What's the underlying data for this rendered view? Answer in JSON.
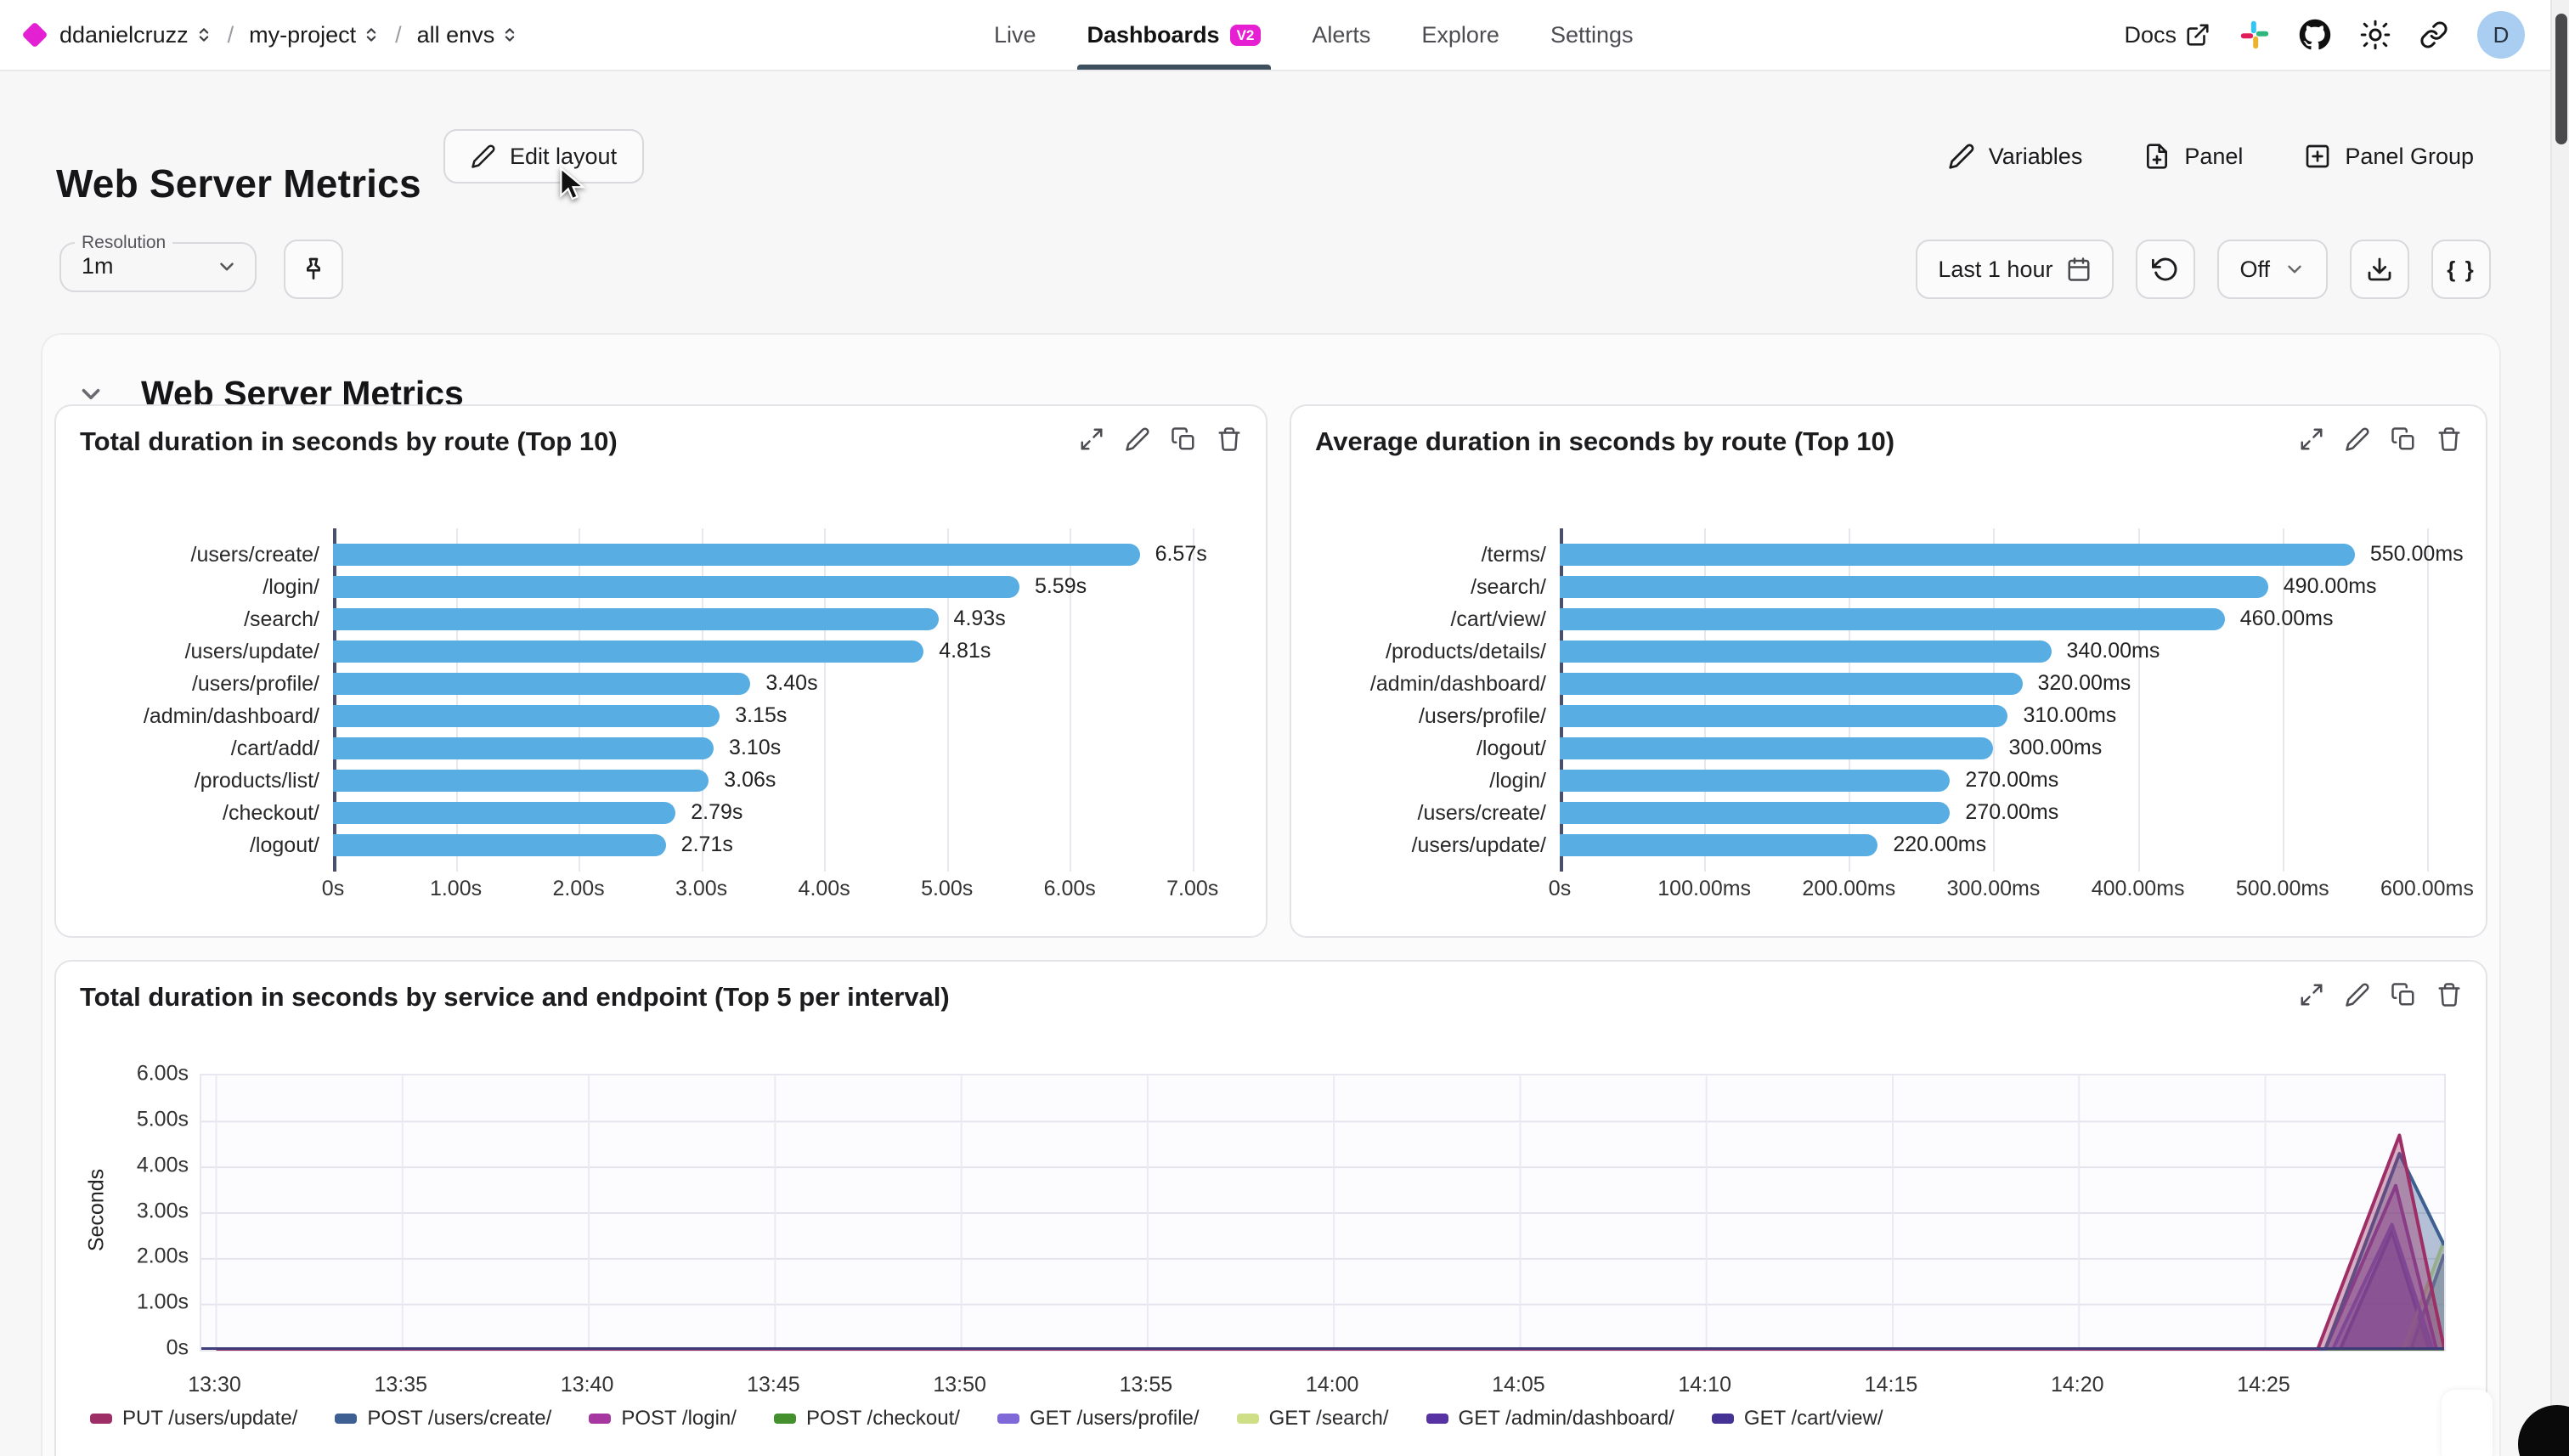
{
  "navbar": {
    "breadcrumb": {
      "org": "ddanielcruzz",
      "project": "my-project",
      "env": "all envs",
      "separator": "/"
    },
    "tabs": [
      {
        "label": "Live",
        "active": false
      },
      {
        "label": "Dashboards",
        "badge": "V2",
        "active": true
      },
      {
        "label": "Alerts",
        "active": false
      },
      {
        "label": "Explore",
        "active": false
      },
      {
        "label": "Settings",
        "active": false
      }
    ],
    "docs_label": "Docs",
    "avatar_initial": "D"
  },
  "header": {
    "title": "Web Server Metrics",
    "edit_layout_label": "Edit layout",
    "variables_label": "Variables",
    "panel_label": "Panel",
    "panel_group_label": "Panel Group"
  },
  "controls": {
    "resolution_label": "Resolution",
    "resolution_value": "1m",
    "time_range_value": "Last 1 hour",
    "refresh_mode_value": "Off",
    "braces_label": "{ }"
  },
  "section": {
    "title": "Web Server Metrics"
  },
  "colors": {
    "accent": "#e321d3",
    "bar_blue": "#58ade2",
    "nav_underline": "#3e4f5e"
  },
  "chart_data": [
    {
      "type": "bar",
      "title": "Total duration in seconds by route (Top 10)",
      "orientation": "horizontal",
      "categories": [
        "/users/create/",
        "/login/",
        "/search/",
        "/users/update/",
        "/users/profile/",
        "/admin/dashboard/",
        "/cart/add/",
        "/products/list/",
        "/checkout/",
        "/logout/"
      ],
      "values": [
        6.57,
        5.59,
        4.93,
        4.81,
        3.4,
        3.15,
        3.1,
        3.06,
        2.79,
        2.71
      ],
      "value_labels": [
        "6.57s",
        "5.59s",
        "4.93s",
        "4.81s",
        "3.40s",
        "3.15s",
        "3.10s",
        "3.06s",
        "2.79s",
        "2.71s"
      ],
      "x_tick_labels": [
        "0s",
        "1.00s",
        "2.00s",
        "3.00s",
        "4.00s",
        "5.00s",
        "6.00s",
        "7.00s"
      ],
      "x_tick_values": [
        0,
        1,
        2,
        3,
        4,
        5,
        6,
        7
      ],
      "xlim": [
        0,
        7.5
      ],
      "bar_color": "#58ade2",
      "grid": true
    },
    {
      "type": "bar",
      "title": "Average duration in seconds by route (Top 10)",
      "orientation": "horizontal",
      "categories": [
        "/terms/",
        "/search/",
        "/cart/view/",
        "/products/details/",
        "/admin/dashboard/",
        "/users/profile/",
        "/logout/",
        "/login/",
        "/users/create/",
        "/users/update/"
      ],
      "values": [
        550,
        490,
        460,
        340,
        320,
        310,
        300,
        270,
        270,
        220
      ],
      "value_labels": [
        "550.00ms",
        "490.00ms",
        "460.00ms",
        "340.00ms",
        "320.00ms",
        "310.00ms",
        "300.00ms",
        "270.00ms",
        "270.00ms",
        "220.00ms"
      ],
      "x_tick_labels": [
        "0s",
        "100.00ms",
        "200.00ms",
        "300.00ms",
        "400.00ms",
        "500.00ms",
        "600.00ms"
      ],
      "x_tick_values": [
        0,
        100,
        200,
        300,
        400,
        500,
        600
      ],
      "xlim": [
        0,
        630
      ],
      "bar_color": "#58ade2",
      "grid": true
    },
    {
      "type": "area",
      "title": "Total duration in seconds by service and endpoint (Top 5 per interval)",
      "ylabel": "Seconds",
      "y_tick_labels": [
        "0s",
        "1.00s",
        "2.00s",
        "3.00s",
        "4.00s",
        "5.00s",
        "6.00s"
      ],
      "y_tick_values": [
        0,
        1,
        2,
        3,
        4,
        5,
        6
      ],
      "ylim": [
        0,
        6
      ],
      "x_tick_labels": [
        "13:30",
        "13:35",
        "13:40",
        "13:45",
        "13:50",
        "13:55",
        "14:00",
        "14:05",
        "14:10",
        "14:15",
        "14:20",
        "14:25"
      ],
      "x_tick_minutes": [
        0,
        5,
        10,
        15,
        20,
        25,
        30,
        35,
        40,
        45,
        50,
        55
      ],
      "xlim_minutes": [
        -0.4,
        59.8
      ],
      "grid": true,
      "legend_position": "bottom",
      "series": [
        {
          "name": "PUT /users/update/",
          "color": "#9d2f66",
          "points": [
            [
              0,
              0
            ],
            [
              56.4,
              0
            ],
            [
              58.6,
              4.7
            ],
            [
              59.8,
              0.05
            ]
          ]
        },
        {
          "name": "POST /users/create/",
          "color": "#3d5f92",
          "points": [
            [
              0,
              0
            ],
            [
              56.6,
              0
            ],
            [
              58.6,
              4.3
            ],
            [
              59.8,
              2.3
            ]
          ]
        },
        {
          "name": "POST /login/",
          "color": "#a637a0",
          "points": [
            [
              0,
              0
            ],
            [
              56.6,
              0
            ],
            [
              58.5,
              3.6
            ],
            [
              59.6,
              0
            ]
          ]
        },
        {
          "name": "POST /checkout/",
          "color": "#44902e",
          "points": [
            [
              0,
              0
            ],
            [
              59.8,
              0
            ]
          ]
        },
        {
          "name": "GET /users/profile/",
          "color": "#7f68d8",
          "points": [
            [
              0,
              0
            ],
            [
              56.8,
              0
            ],
            [
              58.4,
              2.75
            ],
            [
              59.5,
              0
            ]
          ]
        },
        {
          "name": "GET /search/",
          "color": "#cfdf88",
          "points": [
            [
              0,
              0
            ],
            [
              58.7,
              0
            ],
            [
              59.8,
              2.4
            ]
          ]
        },
        {
          "name": "GET /admin/dashboard/",
          "color": "#5632a2",
          "points": [
            [
              0,
              0
            ],
            [
              57.0,
              0
            ],
            [
              58.4,
              2.6
            ],
            [
              59.4,
              0
            ]
          ]
        },
        {
          "name": "GET /cart/view/",
          "color": "#453295",
          "points": [
            [
              0,
              0
            ],
            [
              58.9,
              0
            ],
            [
              59.8,
              2.1
            ]
          ]
        }
      ]
    }
  ]
}
